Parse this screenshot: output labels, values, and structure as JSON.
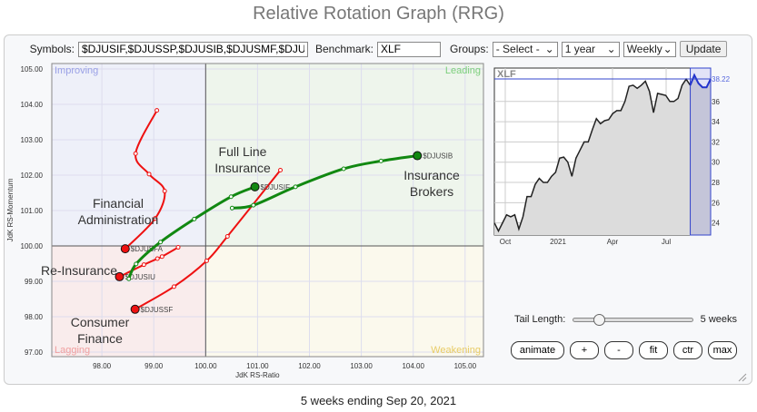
{
  "title": "Relative Rotation Graph (RRG)",
  "toolbar": {
    "symbols_label": "Symbols:",
    "symbols_value": "$DJUSIF,$DJUSSP,$DJUSIB,$DJUSMF,$DJUSFA,",
    "benchmark_label": "Benchmark:",
    "benchmark_value": "XLF",
    "groups_label": "Groups:",
    "groups_value": "- Select -",
    "period_value": "1 year",
    "freq_value": "Weekly",
    "update_label": "Update"
  },
  "quadrants": {
    "improving": "Improving",
    "leading": "Leading",
    "lagging": "Lagging",
    "weakening": "Weakening",
    "colors": {
      "improving": "#eef0f9",
      "leading": "#eef5ec",
      "lagging": "#f9ecec",
      "weakening": "#fbf9ed"
    }
  },
  "group_labels": {
    "fa": "Financial Administration",
    "fli": "Full Line Insurance",
    "ib": "Insurance Brokers",
    "ri": "Re-Insurance",
    "cf": "Consumer Finance"
  },
  "chart_data": [
    {
      "type": "scatter",
      "title": "",
      "xlabel": "JdK RS-Ratio",
      "ylabel": "JdK RS-Momentum",
      "xlim": [
        97,
        105.5
      ],
      "ylim": [
        97,
        105
      ],
      "xticks": [
        "98.00",
        "99.00",
        "100.00",
        "101.00",
        "102.00",
        "103.00",
        "104.00",
        "105.00"
      ],
      "yticks": [
        "105.00",
        "104.00",
        "103.00",
        "102.00",
        "101.00",
        "100.00",
        "99.00",
        "98.00",
        "97.00"
      ],
      "grid": true,
      "series": [
        {
          "name": "$DJUSFA",
          "color": "#ee1111",
          "points": [
            [
              99.06,
              103.83
            ],
            [
              98.65,
              102.61
            ],
            [
              98.91,
              102.03
            ],
            [
              99.21,
              101.55
            ],
            [
              99.03,
              100.78
            ],
            [
              98.45,
              99.92
            ]
          ]
        },
        {
          "name": "$DJUSIU",
          "color": "#ee1111",
          "points": [
            [
              99.47,
              99.96
            ],
            [
              99.16,
              99.7
            ],
            [
              99.07,
              99.64
            ],
            [
              98.81,
              99.47
            ],
            [
              98.34,
              99.13
            ]
          ]
        },
        {
          "name": "$DJUSSF",
          "color": "#ee1111",
          "points": [
            [
              101.44,
              102.14
            ],
            [
              100.42,
              100.27
            ],
            [
              100.02,
              99.58
            ],
            [
              99.39,
              98.85
            ],
            [
              98.64,
              98.21
            ]
          ]
        },
        {
          "name": "$DJUSIF",
          "color": "#118811",
          "points": [
            [
              98.52,
              99.07
            ],
            [
              98.66,
              99.49
            ],
            [
              99.13,
              100.11
            ],
            [
              99.78,
              100.76
            ],
            [
              100.49,
              101.39
            ],
            [
              100.95,
              101.67
            ]
          ]
        },
        {
          "name": "$DJUSIB",
          "color": "#118811",
          "points": [
            [
              100.51,
              101.07
            ],
            [
              100.92,
              101.15
            ],
            [
              101.73,
              101.67
            ],
            [
              102.66,
              102.18
            ],
            [
              103.38,
              102.4
            ],
            [
              104.08,
              102.55
            ]
          ]
        }
      ]
    },
    {
      "type": "area",
      "title": "XLF",
      "ylim": [
        22.8,
        39.3
      ],
      "yticks": [
        "24",
        "26",
        "28",
        "30",
        "32",
        "34",
        "36"
      ],
      "last_label": "38.22",
      "xticks": [
        "Oct",
        "2021",
        "Apr",
        "Jul"
      ],
      "values": [
        24.0,
        23.2,
        24.0,
        24.8,
        24.6,
        24.8,
        23.4,
        24.6,
        26.6,
        26.6,
        27.8,
        28.4,
        28.0,
        28.0,
        28.6,
        29.0,
        30.4,
        30.5,
        30.0,
        28.6,
        30.4,
        31.2,
        32.0,
        32.0,
        33.2,
        34.3,
        33.8,
        34.1,
        34.2,
        34.8,
        35.1,
        35.1,
        36.0,
        37.5,
        37.6,
        37.3,
        37.6,
        38.0,
        37.0,
        34.9,
        36.8,
        36.7,
        36.6,
        36.0,
        36.0,
        36.3,
        37.6,
        38.2,
        37.6,
        38.6,
        37.8,
        37.4,
        37.4,
        38.22
      ],
      "highlight_last": 5
    }
  ],
  "tail": {
    "label": "Tail Length:",
    "value": "5 weeks",
    "position": 0.17
  },
  "buttons": {
    "animate": "animate",
    "plus": "+",
    "minus": "-",
    "fit": "fit",
    "ctr": "ctr",
    "max": "max"
  },
  "footer": "5 weeks ending Sep 20, 2021"
}
